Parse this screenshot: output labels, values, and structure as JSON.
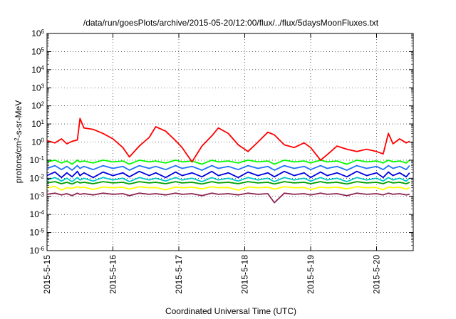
{
  "chart_data": {
    "type": "line",
    "title": "/data/run/goesPlots/archive/2015-05-20/12:00/flux/../flux/5daysMoonFluxes.txt",
    "xlabel": "Coordinated Universal Time (UTC)",
    "ylabel_parts": [
      "protons/cm",
      "2",
      "-s-sr-MeV"
    ],
    "yscale": "log",
    "ylim": [
      1e-06,
      1000000.0
    ],
    "xlim": [
      "2015-05-15",
      "2015-05-20 12:00"
    ],
    "x_ticks": [
      "2015-5-15",
      "2015-5-16",
      "2015-5-17",
      "2015-5-18",
      "2015-5-19",
      "2015-5-20"
    ],
    "y_ticks": [
      {
        "value": 1e-06,
        "base": "10",
        "exp": "-6"
      },
      {
        "value": 1e-05,
        "base": "10",
        "exp": "-5"
      },
      {
        "value": 0.0001,
        "base": "10",
        "exp": "-4"
      },
      {
        "value": 0.001,
        "base": "10",
        "exp": "-3"
      },
      {
        "value": 0.01,
        "base": "10",
        "exp": "-2"
      },
      {
        "value": 0.1,
        "base": "10",
        "exp": "-1"
      },
      {
        "value": 1,
        "base": "10",
        "exp": "0"
      },
      {
        "value": 10.0,
        "base": "10",
        "exp": "1"
      },
      {
        "value": 100.0,
        "base": "10",
        "exp": "2"
      },
      {
        "value": 1000.0,
        "base": "10",
        "exp": "3"
      },
      {
        "value": 10000.0,
        "base": "10",
        "exp": "4"
      },
      {
        "value": 100000.0,
        "base": "10",
        "exp": "5"
      },
      {
        "value": 1000000.0,
        "base": "10",
        "exp": "6"
      }
    ],
    "x_days": [
      0,
      0.12,
      0.22,
      0.3,
      0.38,
      0.46,
      0.5,
      0.56,
      0.7,
      0.85,
      1.0,
      1.15,
      1.25,
      1.4,
      1.55,
      1.65,
      1.8,
      1.95,
      2.05,
      2.2,
      2.35,
      2.5,
      2.6,
      2.75,
      2.9,
      3.05,
      3.2,
      3.35,
      3.45,
      3.6,
      3.75,
      3.9,
      4.0,
      4.15,
      4.25,
      4.4,
      4.55,
      4.7,
      4.85,
      5.0,
      5.1,
      5.18,
      5.25,
      5.35,
      5.45,
      5.5
    ],
    "series": [
      {
        "color": "#ff0000",
        "values": [
          1.2,
          0.9,
          1.5,
          0.8,
          1.1,
          1.3,
          20,
          6,
          5,
          3,
          1.5,
          0.5,
          0.15,
          0.6,
          1.8,
          7,
          4,
          1.2,
          0.5,
          0.08,
          0.6,
          2.2,
          6,
          3,
          0.7,
          0.3,
          1,
          3.5,
          2.5,
          0.7,
          0.5,
          0.9,
          0.5,
          0.1,
          0.2,
          0.6,
          0.4,
          0.3,
          0.4,
          0.3,
          0.22,
          3,
          0.8,
          1.5,
          0.9,
          1.1
        ]
      },
      {
        "color": "#00ff00",
        "values": [
          0.08,
          0.1,
          0.07,
          0.09,
          0.06,
          0.1,
          0.08,
          0.09,
          0.07,
          0.1,
          0.08,
          0.09,
          0.06,
          0.1,
          0.08,
          0.09,
          0.07,
          0.1,
          0.08,
          0.09,
          0.06,
          0.1,
          0.08,
          0.09,
          0.07,
          0.1,
          0.08,
          0.09,
          0.06,
          0.1,
          0.08,
          0.09,
          0.07,
          0.1,
          0.08,
          0.09,
          0.06,
          0.1,
          0.08,
          0.09,
          0.07,
          0.1,
          0.08,
          0.09,
          0.07,
          0.1
        ]
      },
      {
        "color": "#1e6eff",
        "values": [
          0.035,
          0.05,
          0.03,
          0.045,
          0.028,
          0.05,
          0.035,
          0.045,
          0.03,
          0.05,
          0.035,
          0.045,
          0.028,
          0.05,
          0.035,
          0.045,
          0.03,
          0.05,
          0.035,
          0.045,
          0.028,
          0.05,
          0.035,
          0.045,
          0.03,
          0.05,
          0.035,
          0.045,
          0.028,
          0.05,
          0.035,
          0.045,
          0.03,
          0.05,
          0.035,
          0.045,
          0.028,
          0.05,
          0.035,
          0.045,
          0.03,
          0.05,
          0.035,
          0.045,
          0.03,
          0.05
        ]
      },
      {
        "color": "#0000e0",
        "values": [
          0.014,
          0.022,
          0.011,
          0.02,
          0.012,
          0.024,
          0.014,
          0.02,
          0.011,
          0.022,
          0.014,
          0.02,
          0.012,
          0.024,
          0.014,
          0.02,
          0.011,
          0.022,
          0.014,
          0.02,
          0.012,
          0.024,
          0.014,
          0.02,
          0.011,
          0.022,
          0.014,
          0.02,
          0.012,
          0.024,
          0.014,
          0.02,
          0.011,
          0.022,
          0.014,
          0.02,
          0.012,
          0.024,
          0.014,
          0.02,
          0.011,
          0.022,
          0.014,
          0.02,
          0.012,
          0.02
        ]
      },
      {
        "color": "#00c8c8",
        "values": [
          0.008,
          0.011,
          0.007,
          0.01,
          0.0065,
          0.011,
          0.008,
          0.01,
          0.007,
          0.011,
          0.008,
          0.01,
          0.0065,
          0.011,
          0.008,
          0.01,
          0.007,
          0.011,
          0.008,
          0.01,
          0.0065,
          0.011,
          0.008,
          0.01,
          0.007,
          0.011,
          0.008,
          0.01,
          0.0065,
          0.011,
          0.008,
          0.01,
          0.007,
          0.011,
          0.008,
          0.01,
          0.0065,
          0.011,
          0.008,
          0.01,
          0.007,
          0.011,
          0.008,
          0.01,
          0.007,
          0.01
        ]
      },
      {
        "color": "#00a000",
        "values": [
          0.0055,
          0.0065,
          0.005,
          0.006,
          0.0048,
          0.0065,
          0.0055,
          0.006,
          0.005,
          0.0065,
          0.0055,
          0.006,
          0.0048,
          0.0065,
          0.0055,
          0.006,
          0.005,
          0.0065,
          0.0055,
          0.006,
          0.0048,
          0.0065,
          0.0055,
          0.006,
          0.005,
          0.0065,
          0.0055,
          0.006,
          0.0048,
          0.0065,
          0.0055,
          0.006,
          0.005,
          0.0065,
          0.0055,
          0.006,
          0.0048,
          0.0065,
          0.0055,
          0.006,
          0.005,
          0.0065,
          0.0055,
          0.006,
          0.005,
          0.006
        ]
      },
      {
        "color": "#ffff00",
        "values": [
          0.003,
          0.0035,
          0.0022,
          0.003,
          0.0028,
          0.0034,
          0.003,
          0.0032,
          0.0024,
          0.0033,
          0.003,
          0.0032,
          0.0025,
          0.0034,
          0.003,
          0.0031,
          0.0023,
          0.0033,
          0.003,
          0.0032,
          0.0026,
          0.0034,
          0.003,
          0.0031,
          0.0022,
          0.0033,
          0.003,
          0.0032,
          0.0025,
          0.0034,
          0.003,
          0.0031,
          0.0024,
          0.0033,
          0.003,
          0.0032,
          0.0026,
          0.0034,
          0.003,
          0.0031,
          0.0023,
          0.0033,
          0.003,
          0.0032,
          0.0025,
          0.003
        ]
      },
      {
        "color": "#8b2252",
        "values": [
          0.0013,
          0.0015,
          0.0012,
          0.0014,
          0.0011,
          0.0015,
          0.0013,
          0.0014,
          0.0012,
          0.0015,
          0.0013,
          0.0014,
          0.0011,
          0.0015,
          0.0013,
          0.0014,
          0.0012,
          0.0015,
          0.0013,
          0.0014,
          0.0011,
          0.0015,
          0.0013,
          0.0014,
          0.0012,
          0.0015,
          0.0013,
          0.0014,
          0.00045,
          0.0015,
          0.0013,
          0.0014,
          0.0012,
          0.0015,
          0.0013,
          0.0014,
          0.0011,
          0.0015,
          0.0013,
          0.0014,
          0.0012,
          0.0015,
          0.0013,
          0.0014,
          0.0012,
          0.0013
        ]
      }
    ]
  }
}
